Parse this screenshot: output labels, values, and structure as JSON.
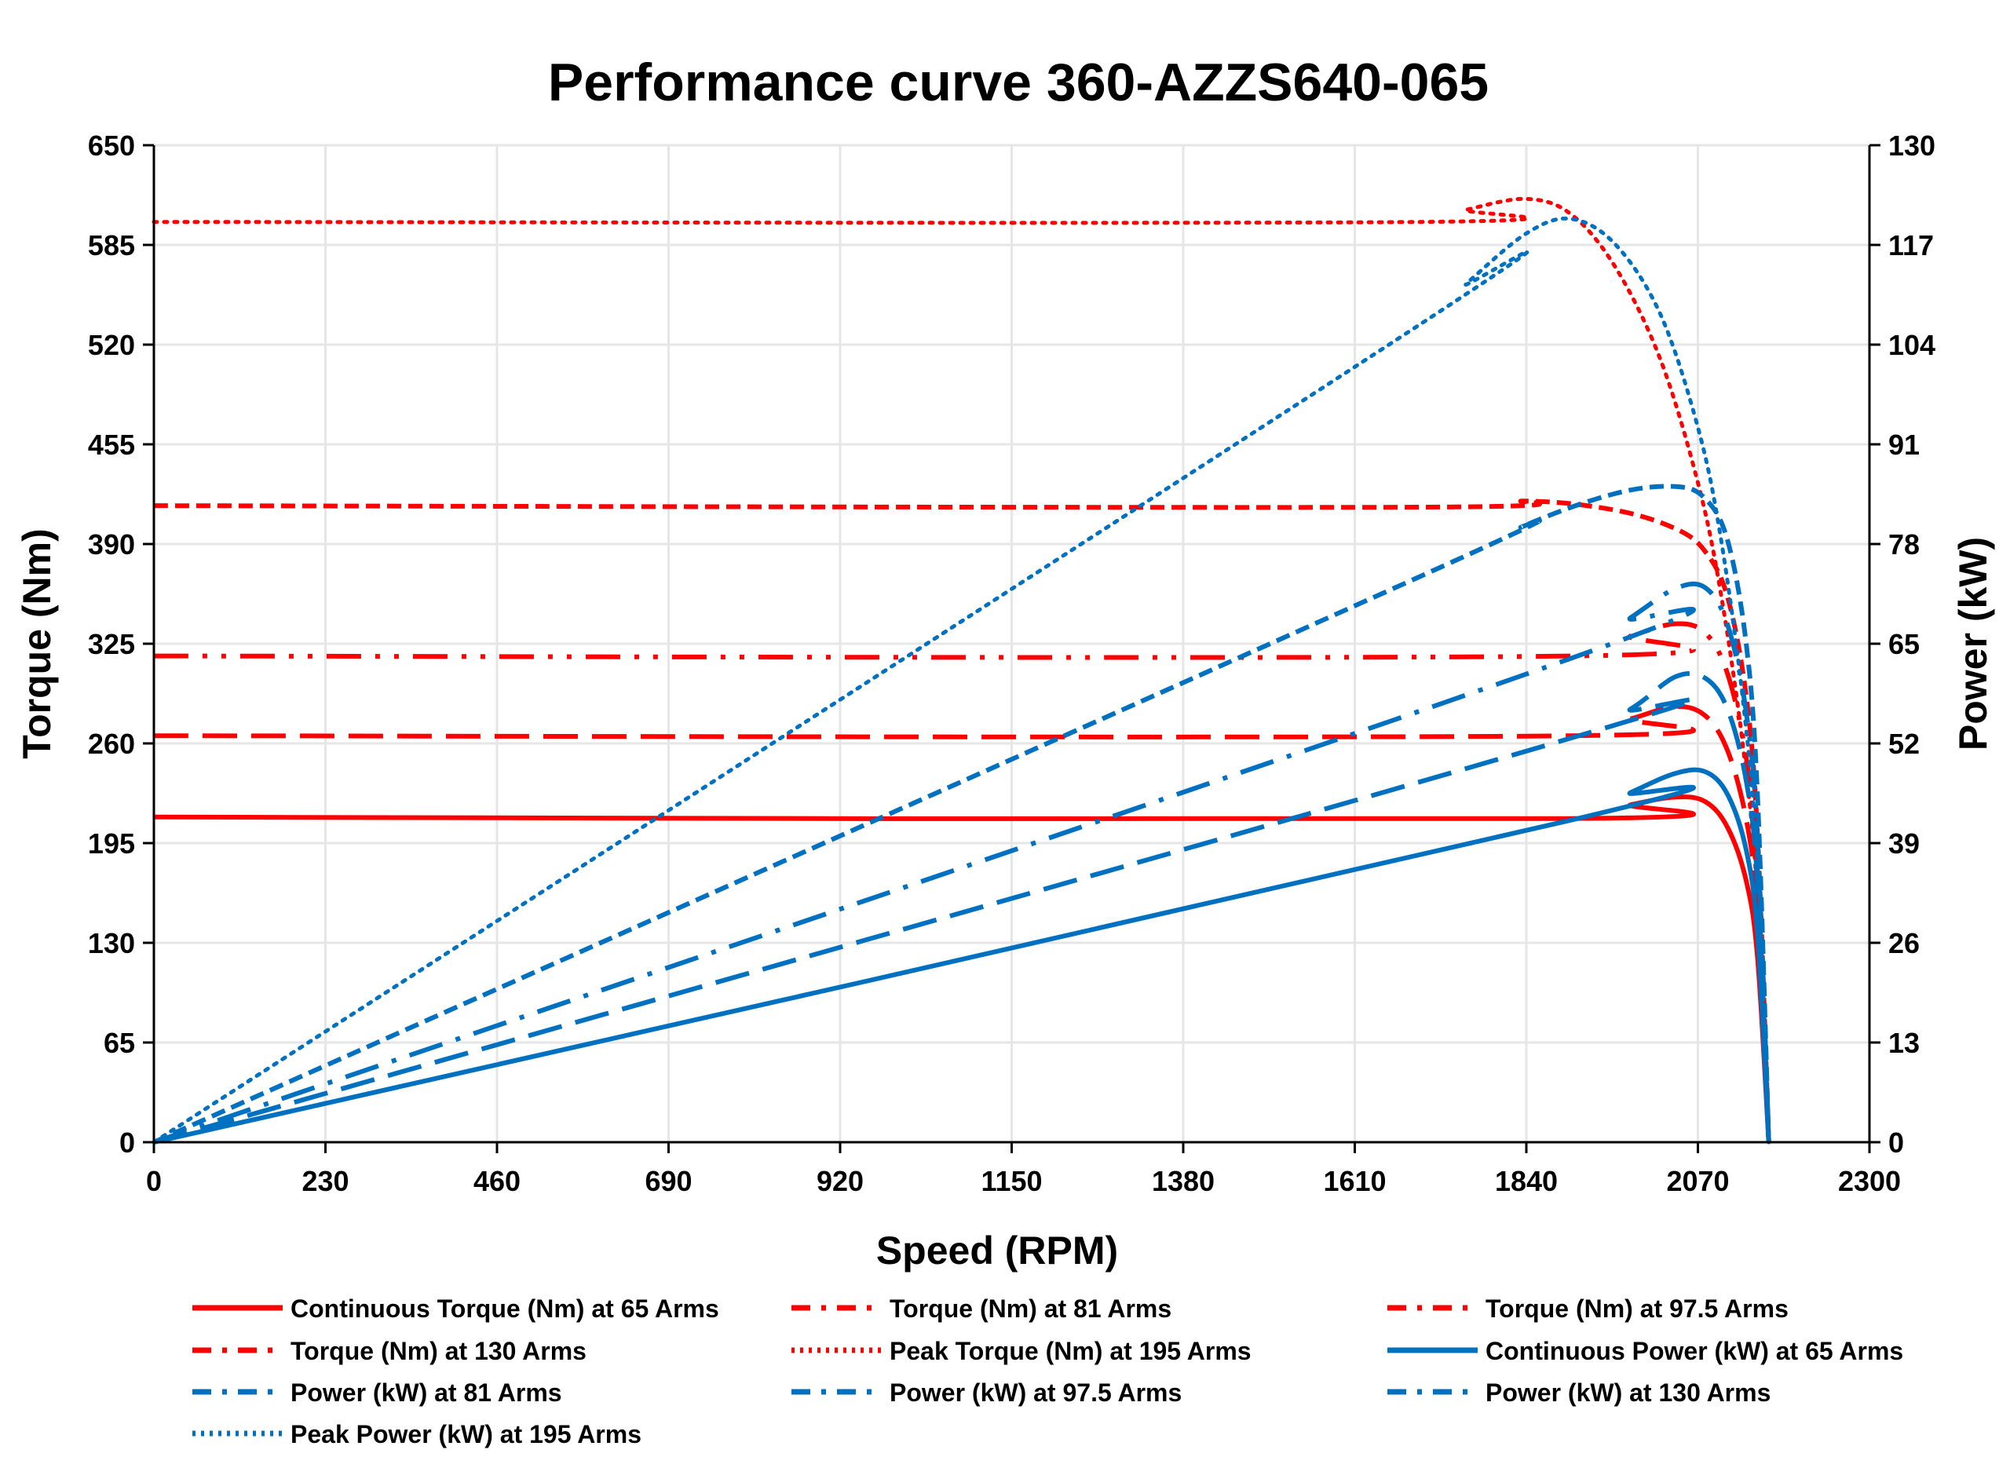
{
  "chart_data": {
    "type": "line",
    "title": "Performance curve 360-AZZS640-065",
    "xlabel": "Speed (RPM)",
    "ylabel_left": "Torque (Nm)",
    "ylabel_right": "Power (kW)",
    "xlim": [
      0,
      2300
    ],
    "ylim_left": [
      0,
      650
    ],
    "ylim_right": [
      0,
      130
    ],
    "x_ticks": [
      "0",
      "230",
      "460",
      "690",
      "920",
      "1150",
      "1380",
      "1610",
      "1840",
      "2070",
      "2300"
    ],
    "y_ticks_left": [
      "0",
      "65",
      "130",
      "195",
      "260",
      "325",
      "390",
      "455",
      "520",
      "585",
      "650"
    ],
    "y_ticks_right": [
      "0",
      "13",
      "26",
      "39",
      "52",
      "65",
      "78",
      "91",
      "104",
      "117",
      "130"
    ],
    "grid": true,
    "legend_position": "bottom",
    "colors": {
      "torque": "#FF0000",
      "power": "#0070C0"
    },
    "series": [
      {
        "name": "Continuous Torque (Nm) at 65 Arms",
        "axis": "left",
        "color": "#FF0000",
        "style": "solid",
        "x": [
          0,
          1900,
          1980,
          2040,
          2080,
          2110,
          2135,
          2150,
          2165
        ],
        "y": [
          212,
          211,
          220,
          225,
          222,
          205,
          170,
          120,
          0
        ]
      },
      {
        "name": "Torque (Nm) at 81 Arms",
        "axis": "left",
        "color": "#FF0000",
        "style": "long-dash",
        "x": [
          0,
          1900,
          1980,
          2040,
          2080,
          2110,
          2135,
          2150,
          2165
        ],
        "y": [
          265,
          265,
          276,
          284,
          278,
          255,
          210,
          150,
          0
        ]
      },
      {
        "name": "Torque (Nm) at 97.5 Arms",
        "axis": "left",
        "color": "#FF0000",
        "style": "dash-dot-dot",
        "x": [
          0,
          1900,
          1980,
          2040,
          2080,
          2110,
          2135,
          2150,
          2165
        ],
        "y": [
          317,
          317,
          330,
          338,
          332,
          305,
          250,
          175,
          0
        ]
      },
      {
        "name": "Torque (Nm) at 130 Arms",
        "axis": "left",
        "color": "#FF0000",
        "style": "dash",
        "x": [
          0,
          1680,
          1840,
          1960,
          2040,
          2080,
          2110,
          2135,
          2150,
          2165
        ],
        "y": [
          415,
          414,
          418,
          412,
          400,
          385,
          355,
          290,
          200,
          0
        ]
      },
      {
        "name": "Peak Torque (Nm) at 195 Arms",
        "axis": "left",
        "color": "#FF0000",
        "style": "dot",
        "x": [
          0,
          1700,
          1760,
          1840,
          1900,
          1960,
          2020,
          2070,
          2100,
          2130,
          2150,
          2165
        ],
        "y": [
          600,
          600,
          608,
          615,
          605,
          570,
          510,
          430,
          360,
          260,
          160,
          0
        ]
      },
      {
        "name": "Continuous Power (kW) at 65 Arms",
        "axis": "right",
        "color": "#0070C0",
        "style": "solid",
        "x": [
          0,
          1900,
          1980,
          2040,
          2080,
          2110,
          2135,
          2150,
          2165
        ],
        "y": [
          0,
          42.0,
          45.6,
          48.1,
          48.3,
          45.3,
          38.0,
          27.0,
          0
        ]
      },
      {
        "name": "Power (kW) at 81 Arms",
        "axis": "right",
        "color": "#0070C0",
        "style": "long-dash",
        "x": [
          0,
          1900,
          1980,
          2040,
          2080,
          2110,
          2135,
          2150,
          2165
        ],
        "y": [
          0,
          52.7,
          56.5,
          60.7,
          60.5,
          56.4,
          47.0,
          33.8,
          0
        ]
      },
      {
        "name": "Power (kW) at 97.5 Arms",
        "axis": "right",
        "color": "#0070C0",
        "style": "dash-dot",
        "x": [
          0,
          1900,
          1980,
          2040,
          2080,
          2110,
          2135,
          2150,
          2165
        ],
        "y": [
          0,
          63.1,
          68.4,
          72.2,
          72.3,
          67.4,
          55.9,
          39.4,
          0
        ]
      },
      {
        "name": "Power (kW) at 130 Arms",
        "axis": "right",
        "color": "#0070C0",
        "style": "dash",
        "x": [
          0,
          1680,
          1840,
          1960,
          2040,
          2080,
          2110,
          2135,
          2150,
          2165
        ],
        "y": [
          0,
          73.0,
          80.5,
          84.6,
          85.5,
          83.9,
          78.4,
          64.8,
          45.0,
          0
        ]
      },
      {
        "name": "Peak Power (kW) at 195 Arms",
        "axis": "right",
        "color": "#0070C0",
        "style": "dot",
        "x": [
          0,
          1700,
          1760,
          1840,
          1900,
          1960,
          2020,
          2070,
          2100,
          2130,
          2150,
          2165
        ],
        "y": [
          0,
          106.8,
          112.0,
          118.5,
          120.4,
          117.0,
          107.9,
          93.2,
          79.2,
          58.0,
          36.0,
          0
        ]
      }
    ]
  }
}
